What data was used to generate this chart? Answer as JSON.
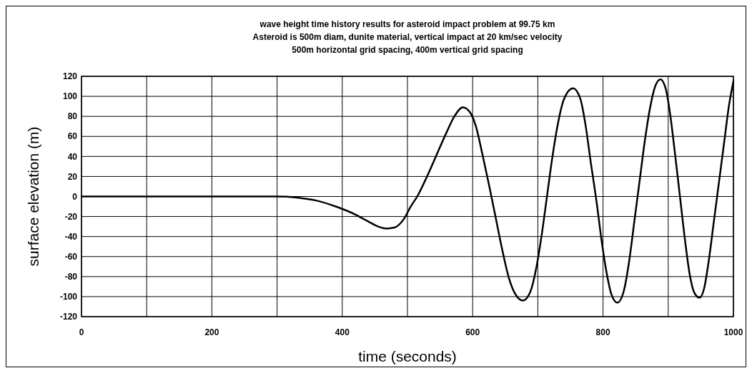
{
  "chart_data": {
    "type": "line",
    "title": "wave height time history results for asteroid impact problem at 99.75 km",
    "subtitle": "Asteroid is 500m diam, dunite material, vertical impact at 20 km/sec velocity\n500m horizontal grid spacing, 400m vertical grid spacing",
    "xlabel": "time (seconds)",
    "ylabel": "surface elevation (m)",
    "xlim": [
      0,
      1000
    ],
    "xticks": [
      0,
      {
        "value": 100,
        "label": null
      },
      200,
      {
        "value": 300,
        "label": null
      },
      400,
      {
        "value": 500,
        "label": null
      },
      600,
      {
        "value": 700,
        "label": null
      },
      800,
      {
        "value": 900,
        "label": null
      },
      1000
    ],
    "ylim": [
      -120,
      120
    ],
    "yticks": [
      -120,
      -100,
      -80,
      -60,
      -40,
      -20,
      0,
      20,
      40,
      60,
      80,
      100,
      120
    ],
    "grid": true,
    "marker": "none",
    "line_style": "solid",
    "series": [
      {
        "color": "#000000",
        "x": [
          0,
          300,
          330,
          360,
          390,
          420,
          440,
          455,
          468,
          480,
          495,
          505,
          515,
          530,
          545,
          560,
          572,
          585,
          596,
          605,
          615,
          625,
          635,
          645,
          655,
          665,
          677,
          688,
          698,
          706,
          714,
          722,
          730,
          740,
          754,
          765,
          773,
          781,
          790,
          798,
          806,
          813,
          822,
          832,
          840,
          848,
          856,
          864,
          872,
          880,
          888,
          896,
          903,
          910,
          918,
          926,
          933,
          940,
          948,
          955,
          962,
          970,
          978,
          986,
          993,
          1000
        ],
        "values": [
          0,
          0,
          -1,
          -4,
          -10,
          -18,
          -25,
          -30,
          -32,
          -31,
          -22,
          -10,
          0,
          20,
          42,
          64,
          80,
          89,
          84,
          70,
          42,
          12,
          -20,
          -52,
          -80,
          -97,
          -104,
          -96,
          -70,
          -38,
          0,
          38,
          70,
          97,
          108,
          98,
          72,
          35,
          -5,
          -45,
          -78,
          -98,
          -106,
          -94,
          -65,
          -25,
          15,
          55,
          88,
          110,
          117,
          108,
          82,
          45,
          0,
          -45,
          -78,
          -96,
          -101,
          -92,
          -65,
          -25,
          15,
          55,
          90,
          115
        ]
      }
    ]
  }
}
